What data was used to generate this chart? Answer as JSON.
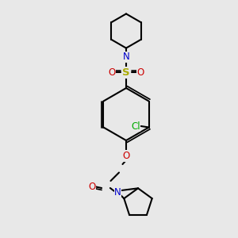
{
  "bg_color": "#e8e8e8",
  "bond_color": "#000000",
  "bond_lw": 1.5,
  "dpi": 100,
  "figsize": [
    3.0,
    3.0
  ],
  "colors": {
    "N": "#0000cc",
    "O": "#cc0000",
    "S": "#aaaa00",
    "Cl": "#00aa00",
    "C": "#000000"
  },
  "font_size": 8.5
}
